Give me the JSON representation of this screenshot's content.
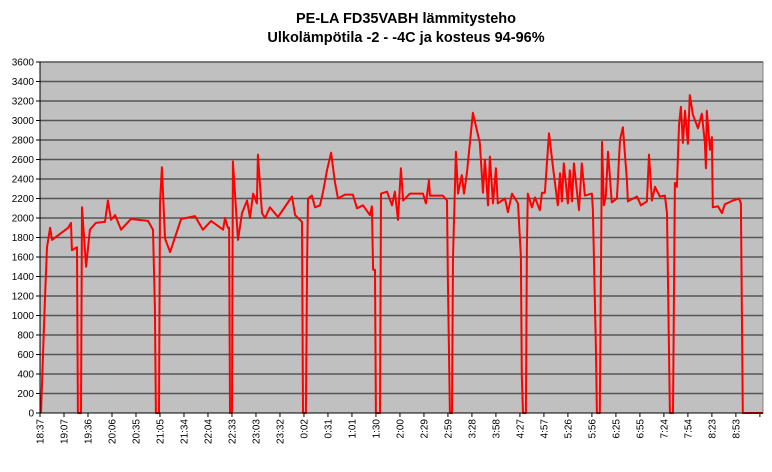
{
  "chart_data": {
    "type": "line",
    "title": "PE-LA FD35VABH lämmitysteho",
    "subtitle": "Ulkolämpötila  -2 - -4C ja kosteus 94-96%",
    "xlabel": "",
    "ylabel": "",
    "ylim": [
      0,
      3600
    ],
    "ytick_step": 200,
    "yticks": [
      "0",
      "200",
      "400",
      "600",
      "800",
      "1000",
      "1200",
      "1400",
      "1600",
      "1800",
      "2000",
      "2200",
      "2400",
      "2600",
      "2800",
      "3000",
      "3200",
      "3400",
      "3600"
    ],
    "categories": [
      "18:37",
      "19:07",
      "19:36",
      "20:06",
      "20:35",
      "21:05",
      "21:34",
      "22:04",
      "22:33",
      "23:03",
      "23:32",
      "0:02",
      "0:31",
      "1:01",
      "1:30",
      "2:00",
      "2:29",
      "2:59",
      "3:28",
      "3:58",
      "4:27",
      "4:57",
      "5:26",
      "5:56",
      "6:25",
      "6:55",
      "7:24",
      "7:54",
      "8:23",
      "8:53",
      ""
    ],
    "xlim": [
      0,
      30.13
    ],
    "grid": true,
    "colors": {
      "line": "#ff0000",
      "plot_bg": "#c0c0c0",
      "grid": "#555555"
    },
    "series": [
      {
        "name": "lämmitysteho",
        "points": [
          [
            0.04,
            0
          ],
          [
            0.21,
            1180
          ],
          [
            0.29,
            1700
          ],
          [
            0.42,
            1900
          ],
          [
            0.5,
            1775
          ],
          [
            1.17,
            1900
          ],
          [
            1.29,
            1950
          ],
          [
            1.33,
            1670
          ],
          [
            1.54,
            1700
          ],
          [
            1.58,
            0
          ],
          [
            1.71,
            0
          ],
          [
            1.75,
            2110
          ],
          [
            1.92,
            1500
          ],
          [
            2.08,
            1880
          ],
          [
            2.33,
            1950
          ],
          [
            2.71,
            1960
          ],
          [
            2.83,
            2180
          ],
          [
            2.96,
            1980
          ],
          [
            3.13,
            2030
          ],
          [
            3.38,
            1880
          ],
          [
            3.79,
            1990
          ],
          [
            4.5,
            1970
          ],
          [
            4.71,
            1880
          ],
          [
            4.79,
            1080
          ],
          [
            4.83,
            0
          ],
          [
            4.96,
            0
          ],
          [
            5.0,
            2150
          ],
          [
            5.08,
            2520
          ],
          [
            5.21,
            1790
          ],
          [
            5.42,
            1650
          ],
          [
            5.88,
            1990
          ],
          [
            6.46,
            2020
          ],
          [
            6.79,
            1880
          ],
          [
            7.13,
            1970
          ],
          [
            7.63,
            1880
          ],
          [
            7.71,
            2000
          ],
          [
            7.83,
            1900
          ],
          [
            7.88,
            1900
          ],
          [
            7.92,
            0
          ],
          [
            8.0,
            0
          ],
          [
            8.04,
            2580
          ],
          [
            8.25,
            1775
          ],
          [
            8.42,
            2050
          ],
          [
            8.63,
            2180
          ],
          [
            8.75,
            2000
          ],
          [
            8.88,
            2250
          ],
          [
            9.04,
            2150
          ],
          [
            9.08,
            2650
          ],
          [
            9.25,
            2050
          ],
          [
            9.38,
            2000
          ],
          [
            9.58,
            2110
          ],
          [
            9.92,
            2010
          ],
          [
            10.5,
            2220
          ],
          [
            10.63,
            2030
          ],
          [
            10.92,
            1960
          ],
          [
            10.96,
            0
          ],
          [
            11.08,
            0
          ],
          [
            11.13,
            1540
          ],
          [
            11.17,
            2200
          ],
          [
            11.33,
            2230
          ],
          [
            11.46,
            2110
          ],
          [
            11.67,
            2130
          ],
          [
            11.79,
            2260
          ],
          [
            11.96,
            2490
          ],
          [
            12.13,
            2670
          ],
          [
            12.29,
            2370
          ],
          [
            12.42,
            2200
          ],
          [
            12.71,
            2240
          ],
          [
            13.04,
            2240
          ],
          [
            13.21,
            2100
          ],
          [
            13.46,
            2130
          ],
          [
            13.75,
            2030
          ],
          [
            13.83,
            2120
          ],
          [
            13.88,
            1470
          ],
          [
            13.96,
            1470
          ],
          [
            14.0,
            0
          ],
          [
            14.17,
            0
          ],
          [
            14.21,
            2250
          ],
          [
            14.46,
            2270
          ],
          [
            14.67,
            2130
          ],
          [
            14.79,
            2270
          ],
          [
            14.92,
            1980
          ],
          [
            15.04,
            2510
          ],
          [
            15.13,
            2180
          ],
          [
            15.42,
            2250
          ],
          [
            15.96,
            2250
          ],
          [
            16.08,
            2150
          ],
          [
            16.21,
            2390
          ],
          [
            16.25,
            2230
          ],
          [
            16.79,
            2230
          ],
          [
            16.96,
            2180
          ],
          [
            17.0,
            1360
          ],
          [
            17.08,
            0
          ],
          [
            17.17,
            0
          ],
          [
            17.21,
            1590
          ],
          [
            17.33,
            2680
          ],
          [
            17.42,
            2250
          ],
          [
            17.58,
            2440
          ],
          [
            17.67,
            2250
          ],
          [
            17.79,
            2460
          ],
          [
            18.04,
            3080
          ],
          [
            18.33,
            2770
          ],
          [
            18.46,
            2260
          ],
          [
            18.54,
            2600
          ],
          [
            18.67,
            2130
          ],
          [
            18.75,
            2630
          ],
          [
            18.88,
            2150
          ],
          [
            19.0,
            2510
          ],
          [
            19.08,
            2150
          ],
          [
            19.38,
            2200
          ],
          [
            19.5,
            2060
          ],
          [
            19.67,
            2250
          ],
          [
            19.92,
            2150
          ],
          [
            20.04,
            1600
          ],
          [
            20.08,
            390
          ],
          [
            20.13,
            0
          ],
          [
            20.25,
            0
          ],
          [
            20.29,
            1700
          ],
          [
            20.33,
            2250
          ],
          [
            20.5,
            2110
          ],
          [
            20.63,
            2210
          ],
          [
            20.83,
            2080
          ],
          [
            20.92,
            2260
          ],
          [
            21.04,
            2260
          ],
          [
            21.21,
            2870
          ],
          [
            21.38,
            2520
          ],
          [
            21.58,
            2130
          ],
          [
            21.67,
            2460
          ],
          [
            21.75,
            2170
          ],
          [
            21.83,
            2560
          ],
          [
            22.0,
            2150
          ],
          [
            22.08,
            2490
          ],
          [
            22.17,
            2170
          ],
          [
            22.25,
            2560
          ],
          [
            22.46,
            2080
          ],
          [
            22.58,
            2560
          ],
          [
            22.71,
            2230
          ],
          [
            23.0,
            2250
          ],
          [
            23.04,
            2080
          ],
          [
            23.17,
            615
          ],
          [
            23.21,
            0
          ],
          [
            23.33,
            0
          ],
          [
            23.42,
            2780
          ],
          [
            23.5,
            2130
          ],
          [
            23.58,
            2220
          ],
          [
            23.67,
            2680
          ],
          [
            23.83,
            2160
          ],
          [
            24.04,
            2200
          ],
          [
            24.17,
            2800
          ],
          [
            24.29,
            2930
          ],
          [
            24.46,
            2390
          ],
          [
            24.5,
            2170
          ],
          [
            24.88,
            2220
          ],
          [
            25.04,
            2130
          ],
          [
            25.29,
            2170
          ],
          [
            25.38,
            2650
          ],
          [
            25.5,
            2180
          ],
          [
            25.63,
            2320
          ],
          [
            25.83,
            2220
          ],
          [
            26.04,
            2230
          ],
          [
            26.13,
            2050
          ],
          [
            26.25,
            0
          ],
          [
            26.38,
            0
          ],
          [
            26.46,
            2360
          ],
          [
            26.54,
            2320
          ],
          [
            26.63,
            2950
          ],
          [
            26.71,
            3140
          ],
          [
            26.79,
            2770
          ],
          [
            26.88,
            3100
          ],
          [
            27.0,
            2760
          ],
          [
            27.08,
            3260
          ],
          [
            27.21,
            3060
          ],
          [
            27.42,
            2920
          ],
          [
            27.58,
            3070
          ],
          [
            27.71,
            2770
          ],
          [
            27.75,
            2510
          ],
          [
            27.79,
            3100
          ],
          [
            27.92,
            2700
          ],
          [
            28.0,
            2830
          ],
          [
            28.04,
            2110
          ],
          [
            28.25,
            2120
          ],
          [
            28.42,
            2050
          ],
          [
            28.54,
            2140
          ],
          [
            28.88,
            2180
          ],
          [
            29.13,
            2200
          ],
          [
            29.21,
            2150
          ],
          [
            29.29,
            0
          ],
          [
            30.13,
            0
          ]
        ]
      }
    ]
  }
}
